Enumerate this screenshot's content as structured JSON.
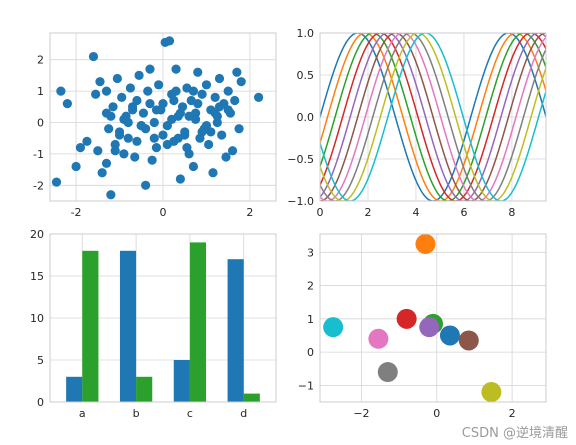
{
  "watermark": "CSDN @逆境清醒",
  "chart_data": [
    {
      "type": "scatter",
      "xlim": [
        -2.6,
        2.6
      ],
      "ylim": [
        -2.5,
        2.85
      ],
      "xticks": [
        -2,
        0,
        2
      ],
      "yticks": [
        -2,
        -1,
        0,
        1,
        2
      ],
      "grid": true,
      "color": "#1f77b4",
      "x": [
        -2.45,
        -2.35,
        -2.2,
        -2.0,
        -1.9,
        -1.75,
        -1.6,
        -1.55,
        -1.45,
        -1.4,
        -1.3,
        -1.3,
        -1.25,
        -1.2,
        -1.15,
        -1.1,
        -1.05,
        -1.0,
        -0.95,
        -0.9,
        -0.85,
        -0.8,
        -0.75,
        -0.7,
        -0.65,
        -0.6,
        -0.55,
        -0.5,
        -0.45,
        -0.4,
        -0.35,
        -0.3,
        -0.25,
        -0.2,
        -0.15,
        -0.1,
        -0.05,
        0.0,
        0.05,
        0.1,
        0.15,
        0.2,
        0.25,
        0.3,
        0.35,
        0.4,
        0.45,
        0.5,
        0.55,
        0.6,
        0.65,
        0.7,
        0.75,
        0.8,
        0.85,
        0.9,
        0.95,
        1.0,
        1.05,
        1.1,
        1.15,
        1.2,
        1.25,
        1.3,
        1.35,
        1.4,
        1.45,
        1.5,
        1.55,
        1.6,
        1.65,
        1.7,
        1.75,
        1.8,
        2.2,
        -1.3,
        -1.1,
        -0.9,
        -0.6,
        -0.3,
        0.1,
        0.3,
        0.5,
        0.8,
        1.0,
        1.2,
        -1.5,
        -1.0,
        -0.7,
        -0.2,
        0.2,
        0.6,
        0.9,
        1.3,
        -0.8,
        -0.4,
        0.0,
        0.4,
        0.7,
        1.1,
        1.5,
        -1.2,
        -0.5,
        0.35,
        0.75,
        1.25,
        -0.15,
        0.25,
        0.55
      ],
      "y": [
        -1.9,
        1.0,
        0.6,
        -1.4,
        -0.8,
        -0.6,
        2.1,
        0.9,
        1.3,
        -1.6,
        0.3,
        1.0,
        -0.2,
        -2.3,
        0.5,
        -0.7,
        1.4,
        -0.3,
        0.8,
        -1.0,
        0.2,
        -0.5,
        1.1,
        0.4,
        -1.1,
        0.7,
        1.5,
        -0.1,
        0.3,
        -2.0,
        1.0,
        0.6,
        -1.2,
        0.0,
        -0.8,
        1.2,
        0.4,
        -0.4,
        2.55,
        -0.1,
        2.6,
        0.9,
        -0.6,
        1.7,
        0.2,
        -1.8,
        0.5,
        -0.3,
        1.1,
        -1.0,
        0.7,
        -1.4,
        0.1,
        1.6,
        -0.5,
        0.9,
        -0.2,
        1.2,
        -0.7,
        0.4,
        -1.6,
        0.8,
        0.0,
        1.4,
        -0.4,
        0.6,
        -1.1,
        1.0,
        0.3,
        -0.9,
        0.7,
        1.6,
        -0.2,
        1.3,
        0.8,
        -1.3,
        -0.9,
        0.1,
        -0.6,
        1.7,
        -0.7,
        1.0,
        -0.4,
        0.6,
        -0.1,
        0.3,
        -0.9,
        -0.4,
        0.5,
        -0.5,
        0.1,
        0.2,
        -0.3,
        0.5,
        0.0,
        -0.2,
        0.6,
        0.3,
        1.0,
        -0.3,
        0.4,
        0.2,
        -0.1,
        -0.5,
        0.3,
        0.2,
        0.4,
        0.7,
        -0.8
      ],
      "xlabel": "",
      "ylabel": ""
    },
    {
      "type": "line",
      "xlim": [
        0,
        9.42
      ],
      "ylim": [
        -1.0,
        1.0
      ],
      "xticks": [
        0,
        2,
        4,
        6,
        8
      ],
      "yticks": [
        -1.0,
        -0.5,
        0.0,
        0.5,
        1.0
      ],
      "ytick_labels": [
        "−1.0",
        "−0.5",
        "0.0",
        "0.5",
        "1.0"
      ],
      "grid": true,
      "function": "sin(x - phase)",
      "phases": [
        0.0,
        0.314,
        0.628,
        0.942,
        1.257,
        1.571,
        1.885,
        2.199,
        2.513,
        2.827
      ],
      "colors": [
        "#1f77b4",
        "#ff7f0e",
        "#2ca02c",
        "#d62728",
        "#9467bd",
        "#8c564b",
        "#e377c2",
        "#7f7f7f",
        "#bcbd22",
        "#17becf"
      ],
      "xlabel": "",
      "ylabel": ""
    },
    {
      "type": "bar",
      "categories": [
        "a",
        "b",
        "c",
        "d"
      ],
      "series": [
        {
          "values": [
            3,
            18,
            5,
            17
          ],
          "color": "#1f77b4"
        },
        {
          "values": [
            18,
            3,
            19,
            1
          ],
          "color": "#2ca02c"
        }
      ],
      "ylim": [
        0,
        20
      ],
      "yticks": [
        0,
        5,
        10,
        15,
        20
      ],
      "grid": true,
      "xlabel": "",
      "ylabel": ""
    },
    {
      "type": "scatter",
      "xlim": [
        -3.1,
        2.9
      ],
      "ylim": [
        -1.5,
        3.55
      ],
      "xticks": [
        -2,
        0,
        2
      ],
      "xtick_labels": [
        "−2",
        "0",
        "2"
      ],
      "yticks": [
        -1,
        0,
        1,
        2,
        3
      ],
      "ytick_labels": [
        "−1",
        "0",
        "1",
        "2",
        "3"
      ],
      "grid": true,
      "points": [
        {
          "x": 0.35,
          "y": 0.5,
          "color": "#1f77b4"
        },
        {
          "x": -0.3,
          "y": 3.25,
          "color": "#ff7f0e"
        },
        {
          "x": -0.1,
          "y": 0.85,
          "color": "#2ca02c"
        },
        {
          "x": -0.8,
          "y": 1.0,
          "color": "#d62728"
        },
        {
          "x": -0.2,
          "y": 0.75,
          "color": "#9467bd"
        },
        {
          "x": 0.85,
          "y": 0.35,
          "color": "#8c564b"
        },
        {
          "x": -1.55,
          "y": 0.4,
          "color": "#e377c2"
        },
        {
          "x": -1.3,
          "y": -0.6,
          "color": "#7f7f7f"
        },
        {
          "x": 1.45,
          "y": -1.2,
          "color": "#bcbd22"
        },
        {
          "x": -2.75,
          "y": 0.75,
          "color": "#17becf"
        }
      ],
      "xlabel": "",
      "ylabel": ""
    }
  ]
}
